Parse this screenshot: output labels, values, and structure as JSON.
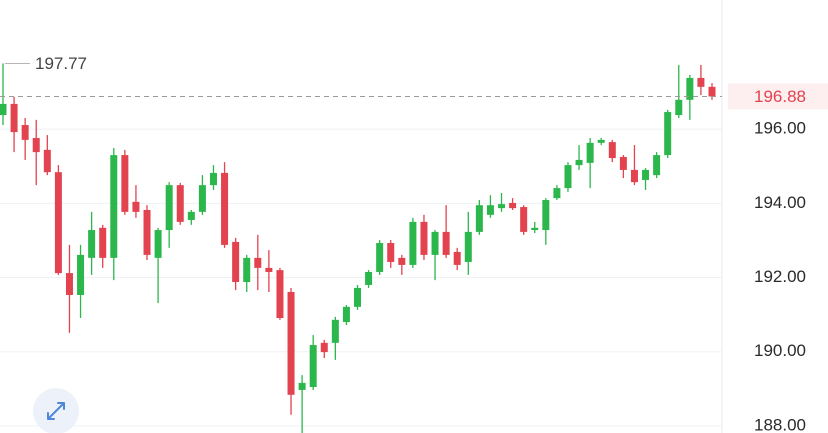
{
  "chart_data": {
    "type": "candlestick",
    "ylim": [
      187.81,
      199.48
    ],
    "yticks": [
      {
        "value": 188,
        "label": "188.00"
      },
      {
        "value": 190,
        "label": "190.00"
      },
      {
        "value": 192,
        "label": "192.00"
      },
      {
        "value": 194,
        "label": "194.00"
      },
      {
        "value": 196,
        "label": "196.00"
      }
    ],
    "grid": true,
    "up_color": "#2cb74c",
    "down_color": "#e2434e",
    "open": [
      196.38,
      196.68,
      196.11,
      195.76,
      195.44,
      194.84,
      192.12,
      191.53,
      192.53,
      193.34,
      192.53,
      195.3,
      194.04,
      193.82,
      192.53,
      193.28,
      194.49,
      193.55,
      193.77,
      194.49,
      194.82,
      192.96,
      191.88,
      192.53,
      192.26,
      192.2,
      191.61,
      188.97,
      189.05,
      190.24,
      190.24,
      190.8,
      191.21,
      191.8,
      192.15,
      192.93,
      192.53,
      192.34,
      193.5,
      192.61,
      193.23,
      192.69,
      192.42,
      193.23,
      193.69,
      193.87,
      194.01,
      193.9,
      193.28,
      193.28,
      194.14,
      194.41,
      195.03,
      195.09,
      195.63,
      195.65,
      195.25,
      194.9,
      194.63,
      194.76,
      195.3,
      196.38,
      196.79,
      197.38,
      197.14
    ],
    "high": [
      197.77,
      196.87,
      196.3,
      196.25,
      195.84,
      195.03,
      192.88,
      192.88,
      193.77,
      193.42,
      195.49,
      195.44,
      194.49,
      193.95,
      193.34,
      194.57,
      194.55,
      193.82,
      194.76,
      195.03,
      195.11,
      193.07,
      192.61,
      193.15,
      192.74,
      192.26,
      191.72,
      189.37,
      190.45,
      190.32,
      190.94,
      191.26,
      191.8,
      192.2,
      193.01,
      193.01,
      192.61,
      193.61,
      193.69,
      193.28,
      193.95,
      192.8,
      193.77,
      194.09,
      194.22,
      194.28,
      194.14,
      193.95,
      193.5,
      194.14,
      194.49,
      195.11,
      195.57,
      195.76,
      195.76,
      195.71,
      195.3,
      195.57,
      194.95,
      195.38,
      196.52,
      197.73,
      197.46,
      197.73,
      197.24
    ],
    "low": [
      196.11,
      195.38,
      195.17,
      194.49,
      194.76,
      192.07,
      190.51,
      190.91,
      192.07,
      192.26,
      191.93,
      193.69,
      193.61,
      192.47,
      191.31,
      192.8,
      193.42,
      193.42,
      193.69,
      194.36,
      192.8,
      191.66,
      191.61,
      191.66,
      191.61,
      190.86,
      188.3,
      187.81,
      188.97,
      189.83,
      189.78,
      190.72,
      191.13,
      191.72,
      192.07,
      192.26,
      192.07,
      192.26,
      192.47,
      191.93,
      192.53,
      192.2,
      192.07,
      193.15,
      193.61,
      193.77,
      193.82,
      193.15,
      193.2,
      192.88,
      194.09,
      194.31,
      194.9,
      194.41,
      195.57,
      195.11,
      194.68,
      194.49,
      194.36,
      194.68,
      195.22,
      196.3,
      196.25,
      196.92,
      196.79
    ],
    "close": [
      196.68,
      195.92,
      195.71,
      195.38,
      194.84,
      192.12,
      191.53,
      192.61,
      193.28,
      192.53,
      195.3,
      193.77,
      193.77,
      192.61,
      193.28,
      194.49,
      193.5,
      193.77,
      194.49,
      194.82,
      192.88,
      191.88,
      192.53,
      192.26,
      192.15,
      190.91,
      188.84,
      189.16,
      190.18,
      189.99,
      190.86,
      191.21,
      191.72,
      192.15,
      192.93,
      192.42,
      192.34,
      193.5,
      192.61,
      193.23,
      192.61,
      192.34,
      193.23,
      193.95,
      193.95,
      193.98,
      193.87,
      193.23,
      193.34,
      194.09,
      194.41,
      195.03,
      195.17,
      195.63,
      195.71,
      195.22,
      194.9,
      194.57,
      194.9,
      195.3,
      196.46,
      196.79,
      197.38,
      197.14,
      196.88
    ]
  }
}
